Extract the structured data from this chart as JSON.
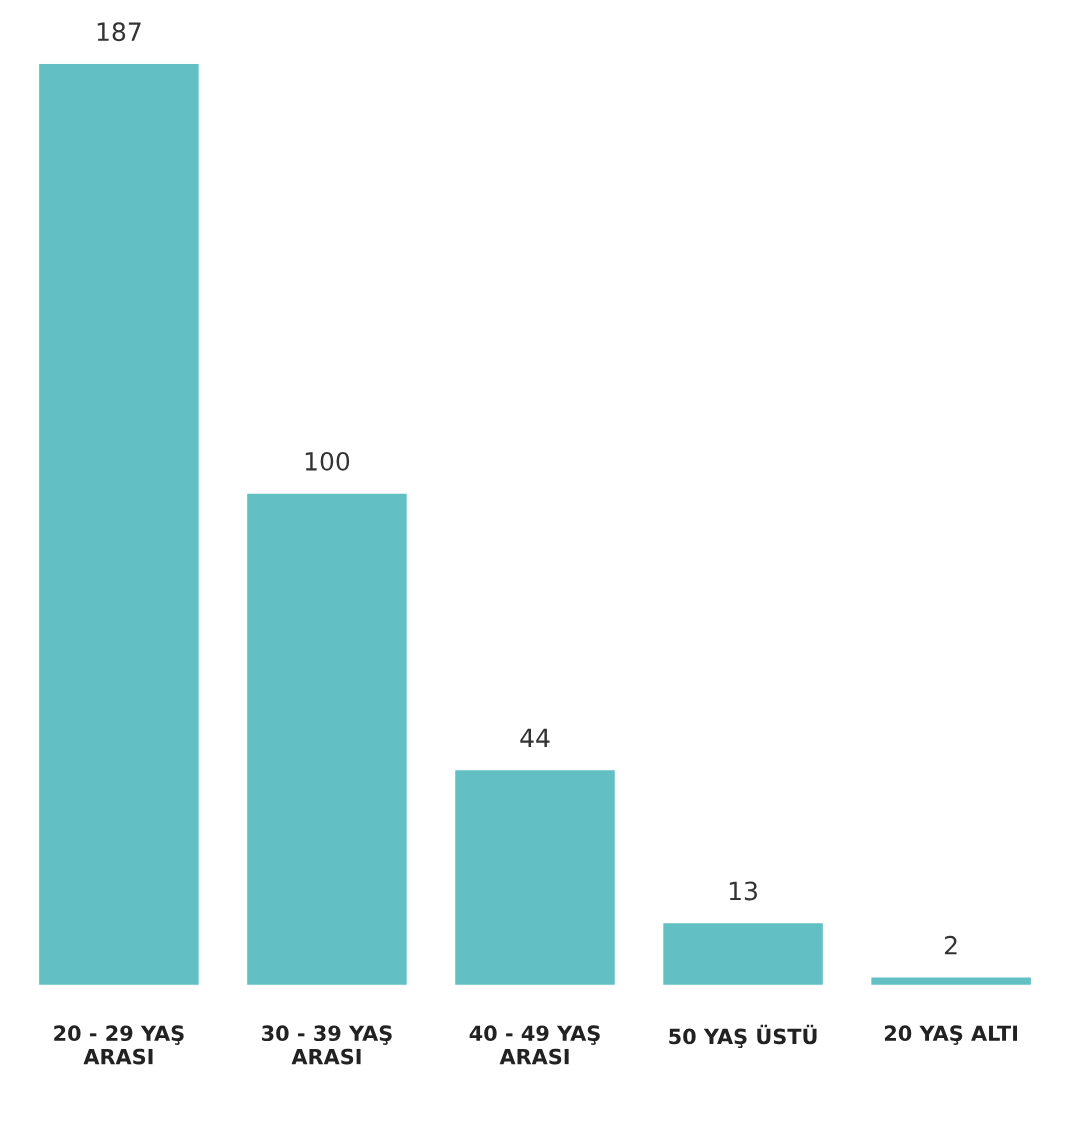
{
  "chart_data": {
    "type": "bar",
    "categories": [
      "20 - 29 YAŞ\nARASI",
      "30 - 39 YAŞ\nARASI",
      "40 - 49 YAŞ\nARASI",
      "50 YAŞ ÜSTÜ",
      "20 YAŞ ALTI"
    ],
    "values": [
      187,
      100,
      44,
      13,
      2
    ],
    "color": "#62bfc3",
    "data_labels": true
  }
}
